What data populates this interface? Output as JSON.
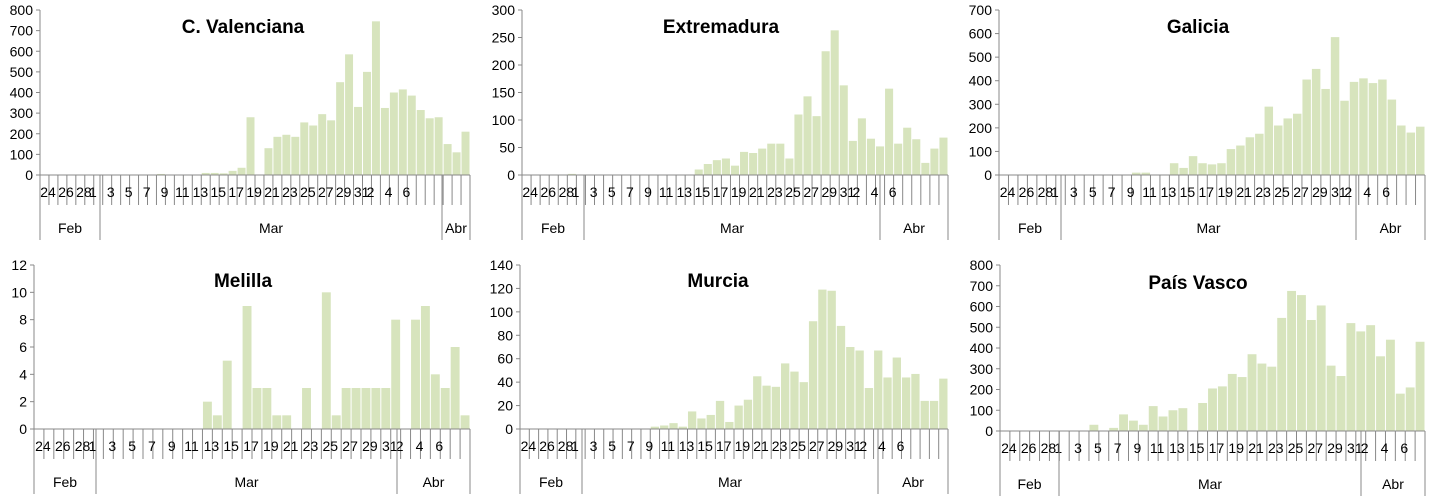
{
  "chart_data": [
    {
      "type": "bar",
      "title": "C. Valenciana",
      "ylim": [
        0,
        800
      ],
      "yticks": [
        0,
        100,
        200,
        300,
        400,
        500,
        600,
        700,
        800
      ],
      "x_tick_labels": [
        "24",
        "26",
        "28",
        "1",
        "3",
        "5",
        "7",
        "9",
        "11",
        "13",
        "15",
        "17",
        "19",
        "21",
        "23",
        "25",
        "27",
        "29",
        "31",
        "2",
        "4",
        "6"
      ],
      "months": [
        "Feb",
        "Mar",
        "Abr"
      ],
      "color": "#d7e4bd",
      "values": [
        0,
        0,
        0,
        0,
        0,
        0,
        0,
        0,
        0,
        0,
        0,
        1,
        0,
        5,
        0,
        0,
        0,
        0,
        10,
        10,
        8,
        20,
        35,
        280,
        0,
        130,
        185,
        195,
        185,
        255,
        240,
        295,
        265,
        450,
        585,
        330,
        500,
        745,
        325,
        400,
        415,
        385,
        315,
        275,
        280,
        150,
        110,
        210
      ]
    },
    {
      "type": "bar",
      "title": "Extremadura",
      "ylim": [
        0,
        300
      ],
      "yticks": [
        0,
        50,
        100,
        150,
        200,
        250,
        300
      ],
      "x_tick_labels": [
        "24",
        "26",
        "28",
        "1",
        "3",
        "5",
        "7",
        "9",
        "11",
        "13",
        "15",
        "17",
        "19",
        "21",
        "23",
        "25",
        "27",
        "29",
        "31",
        "2",
        "4",
        "6"
      ],
      "months": [
        "Feb",
        "Mar",
        "Abr"
      ],
      "color": "#d7e4bd",
      "values": [
        0,
        0,
        0,
        0,
        0,
        2,
        0,
        0,
        0,
        0,
        0,
        0,
        0,
        0,
        0,
        0,
        0,
        0,
        0,
        10,
        20,
        27,
        30,
        17,
        42,
        40,
        48,
        57,
        57,
        30,
        110,
        143,
        107,
        225,
        263,
        163,
        62,
        103,
        66,
        52,
        157,
        57,
        86,
        65,
        22,
        48,
        68
      ]
    },
    {
      "type": "bar",
      "title": "Galicia",
      "ylim": [
        0,
        700
      ],
      "yticks": [
        0,
        100,
        200,
        300,
        400,
        500,
        600,
        700
      ],
      "x_tick_labels": [
        "24",
        "26",
        "28",
        "1",
        "3",
        "5",
        "7",
        "9",
        "11",
        "13",
        "15",
        "17",
        "19",
        "21",
        "23",
        "25",
        "27",
        "29",
        "31",
        "2",
        "4",
        "6"
      ],
      "months": [
        "Feb",
        "Mar",
        "Abr"
      ],
      "color": "#d7e4bd",
      "values": [
        0,
        0,
        0,
        0,
        0,
        0,
        0,
        0,
        0,
        0,
        0,
        0,
        0,
        0,
        10,
        10,
        0,
        0,
        50,
        30,
        80,
        50,
        45,
        50,
        110,
        125,
        160,
        175,
        290,
        210,
        240,
        260,
        405,
        450,
        365,
        585,
        315,
        395,
        410,
        390,
        405,
        320,
        210,
        180,
        205
      ]
    },
    {
      "type": "bar",
      "title": "Melilla",
      "ylim": [
        0,
        12
      ],
      "yticks": [
        0,
        2,
        4,
        6,
        8,
        10,
        12
      ],
      "x_tick_labels": [
        "24",
        "26",
        "28",
        "1",
        "3",
        "5",
        "7",
        "9",
        "11",
        "13",
        "15",
        "17",
        "19",
        "21",
        "23",
        "25",
        "27",
        "29",
        "31",
        "2",
        "4",
        "6"
      ],
      "months": [
        "Feb",
        "Mar",
        "Abr"
      ],
      "color": "#d7e4bd",
      "values": [
        0,
        0,
        0,
        0,
        0,
        0,
        0,
        0,
        0,
        0,
        0,
        0,
        0,
        0,
        0,
        0,
        0,
        2,
        1,
        5,
        0,
        9,
        3,
        3,
        1,
        1,
        0,
        3,
        0,
        10,
        1,
        3,
        3,
        3,
        3,
        3,
        8,
        0,
        8,
        9,
        4,
        3,
        6,
        1
      ]
    },
    {
      "type": "bar",
      "title": "Murcia",
      "ylim": [
        0,
        140
      ],
      "yticks": [
        0,
        20,
        40,
        60,
        80,
        100,
        120,
        140
      ],
      "x_tick_labels": [
        "24",
        "26",
        "28",
        "1",
        "3",
        "5",
        "7",
        "9",
        "11",
        "13",
        "15",
        "17",
        "19",
        "21",
        "23",
        "25",
        "27",
        "29",
        "31",
        "2",
        "4",
        "6"
      ],
      "months": [
        "Feb",
        "Mar",
        "Abr"
      ],
      "color": "#d7e4bd",
      "values": [
        0,
        0,
        0,
        0,
        0,
        0,
        0,
        0,
        0,
        0,
        0,
        0,
        0,
        0,
        2,
        3,
        5,
        2,
        15,
        9,
        12,
        24,
        6,
        20,
        25,
        45,
        37,
        36,
        56,
        49,
        40,
        92,
        119,
        118,
        88,
        70,
        67,
        35,
        67,
        44,
        61,
        44,
        47,
        24,
        24,
        43
      ]
    },
    {
      "type": "bar",
      "title": "País Vasco",
      "ylim": [
        0,
        800
      ],
      "yticks": [
        0,
        100,
        200,
        300,
        400,
        500,
        600,
        700,
        800
      ],
      "x_tick_labels": [
        "24",
        "26",
        "28",
        "1",
        "3",
        "5",
        "7",
        "9",
        "11",
        "13",
        "15",
        "17",
        "19",
        "21",
        "23",
        "25",
        "27",
        "29",
        "31",
        "2",
        "4",
        "6"
      ],
      "months": [
        "Feb",
        "Mar",
        "Abr"
      ],
      "color": "#d7e4bd",
      "values": [
        0,
        0,
        0,
        0,
        0,
        0,
        0,
        0,
        0,
        30,
        0,
        15,
        80,
        50,
        30,
        120,
        70,
        100,
        110,
        0,
        135,
        205,
        215,
        275,
        260,
        370,
        325,
        310,
        545,
        675,
        655,
        535,
        605,
        315,
        265,
        520,
        480,
        510,
        360,
        440,
        180,
        210,
        430
      ]
    }
  ]
}
